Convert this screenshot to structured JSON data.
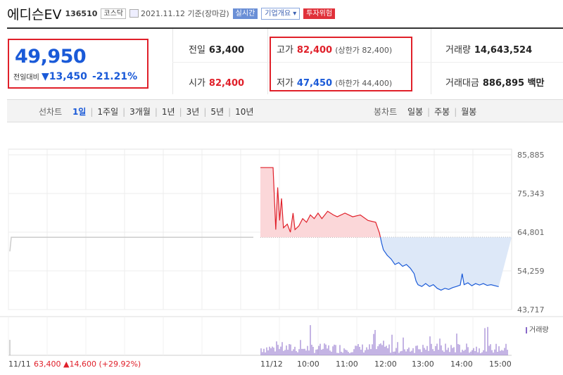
{
  "header": {
    "name": "에디슨EV",
    "code": "136510",
    "market": "코스닥",
    "date": "2021.11.12 기준(장마감)",
    "btn_realtime": "실시간",
    "btn_company": "기업개요 ▾",
    "btn_risk": "투자위험"
  },
  "price": {
    "current": "49,950",
    "change_label": "전일대비",
    "change_arrow": "▼",
    "change": "13,450",
    "change_pct": "-21.21%"
  },
  "stats": {
    "prev_label": "전일",
    "prev": "63,400",
    "open_label": "시가",
    "open": "82,400",
    "high_label": "고가",
    "high": "82,400",
    "high_note": "(상한가 82,400)",
    "low_label": "저가",
    "low": "47,450",
    "low_note": "(하한가 44,400)",
    "volume_label": "거래량",
    "volume": "14,643,524",
    "amount_label": "거래대금",
    "amount": "886,895 백만"
  },
  "tabs": {
    "line_label": "선차트",
    "periods": [
      "1일",
      "1주일",
      "3개월",
      "1년",
      "3년",
      "5년",
      "10년"
    ],
    "active": "1일",
    "candle_label": "봉차트",
    "candles": [
      "일봉",
      "주봉",
      "월봉"
    ]
  },
  "chart_data": {
    "type": "line",
    "y_ticks": [
      "85,885",
      "75,343",
      "64,801",
      "54,259",
      "43,717"
    ],
    "ylim": [
      43717,
      85885
    ],
    "reference": 63400,
    "prev_day_label": "11/11",
    "prev_day_close": "63,400",
    "prev_day_change": "▲14,600 (+29.92%)",
    "day_label": "11/12",
    "x_ticks": [
      "10:00",
      "11:00",
      "12:00",
      "13:00",
      "14:00",
      "15:00"
    ],
    "volume_legend": "거래량",
    "colors": {
      "up": "#e0202a",
      "down": "#1a5ad8",
      "up_fill": "#fbd7d9",
      "down_fill": "#dde8f8",
      "volume": "#8868c8"
    },
    "series": [
      {
        "values": [
          [
            9.0,
            82400
          ],
          [
            9.33,
            82400
          ],
          [
            9.4,
            65500
          ],
          [
            9.45,
            77000
          ],
          [
            9.5,
            68000
          ],
          [
            9.55,
            74000
          ],
          [
            9.6,
            66000
          ],
          [
            9.7,
            67000
          ],
          [
            9.78,
            64800
          ],
          [
            9.85,
            70000
          ],
          [
            9.9,
            65500
          ],
          [
            10.0,
            66500
          ],
          [
            10.1,
            68500
          ],
          [
            10.2,
            67500
          ],
          [
            10.3,
            69500
          ],
          [
            10.4,
            68500
          ],
          [
            10.5,
            70000
          ],
          [
            10.6,
            68500
          ],
          [
            10.75,
            70500
          ],
          [
            10.9,
            69500
          ],
          [
            11.0,
            69000
          ],
          [
            11.2,
            70000
          ],
          [
            11.4,
            69000
          ],
          [
            11.6,
            69500
          ],
          [
            11.8,
            68000
          ],
          [
            12.0,
            67500
          ],
          [
            12.1,
            64500
          ],
          [
            12.15,
            62000
          ],
          [
            12.2,
            60000
          ],
          [
            12.3,
            58500
          ],
          [
            12.4,
            57500
          ],
          [
            12.5,
            56000
          ],
          [
            12.6,
            56500
          ],
          [
            12.7,
            55500
          ],
          [
            12.8,
            56000
          ],
          [
            12.9,
            55000
          ],
          [
            13.0,
            53500
          ],
          [
            13.05,
            51500
          ],
          [
            13.1,
            50500
          ],
          [
            13.2,
            50000
          ],
          [
            13.3,
            50800
          ],
          [
            13.4,
            50000
          ],
          [
            13.5,
            50500
          ],
          [
            13.6,
            49500
          ],
          [
            13.7,
            49000
          ],
          [
            13.8,
            49500
          ],
          [
            13.9,
            49200
          ],
          [
            14.0,
            49700
          ],
          [
            14.1,
            50000
          ],
          [
            14.2,
            50400
          ],
          [
            14.25,
            53500
          ],
          [
            14.3,
            50500
          ],
          [
            14.4,
            51000
          ],
          [
            14.5,
            50200
          ],
          [
            14.6,
            50800
          ],
          [
            14.7,
            50400
          ],
          [
            14.8,
            50800
          ],
          [
            14.9,
            50300
          ],
          [
            15.0,
            50500
          ],
          [
            15.2,
            49950
          ]
        ]
      }
    ]
  }
}
